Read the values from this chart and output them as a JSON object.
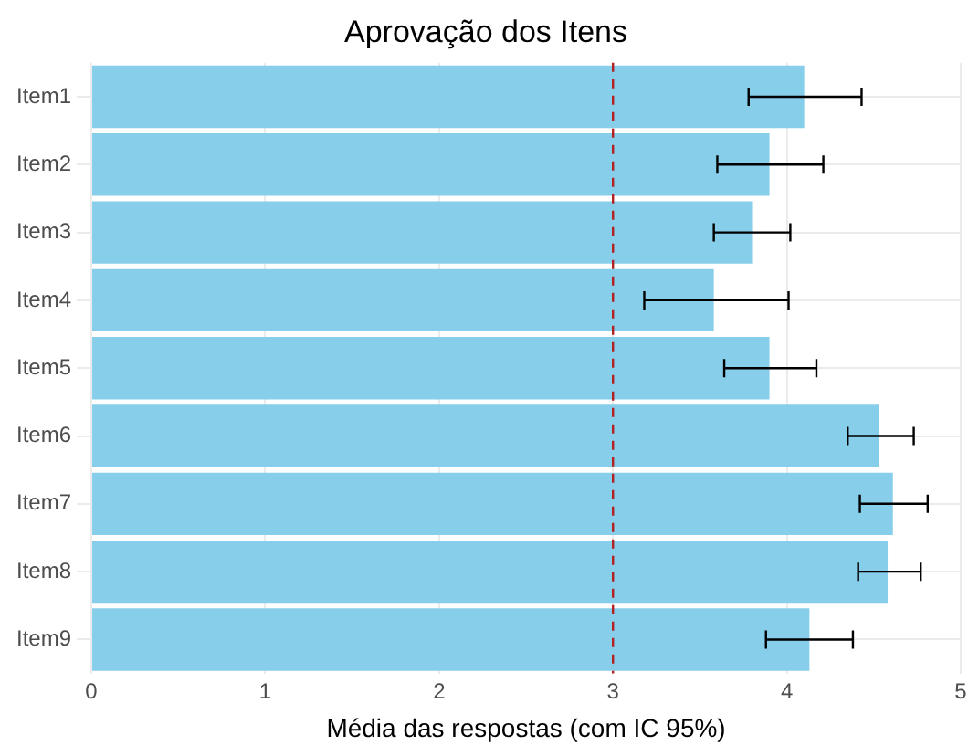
{
  "chart_data": {
    "type": "bar",
    "orientation": "horizontal",
    "title": "Aprovação dos Itens",
    "xlabel": "Média das respostas (com IC 95%)",
    "categories": [
      "Item1",
      "Item2",
      "Item3",
      "Item4",
      "Item5",
      "Item6",
      "Item7",
      "Item8",
      "Item9"
    ],
    "values": [
      4.1,
      3.9,
      3.8,
      3.58,
      3.9,
      4.53,
      4.61,
      4.58,
      4.13
    ],
    "errors": [
      [
        3.78,
        4.43
      ],
      [
        3.6,
        4.21
      ],
      [
        3.58,
        4.02
      ],
      [
        3.18,
        4.01
      ],
      [
        3.64,
        4.17
      ],
      [
        4.35,
        4.73
      ],
      [
        4.42,
        4.81
      ],
      [
        4.41,
        4.77
      ],
      [
        3.88,
        4.38
      ]
    ],
    "color": "#87ceeb",
    "xlim": [
      0,
      5
    ],
    "xticks": [
      0,
      1,
      2,
      3,
      4,
      5
    ],
    "ref_lines": [
      {
        "axis": "x",
        "value": 3,
        "color": "#b22222",
        "line_style": "dashed"
      }
    ],
    "grid": true
  }
}
